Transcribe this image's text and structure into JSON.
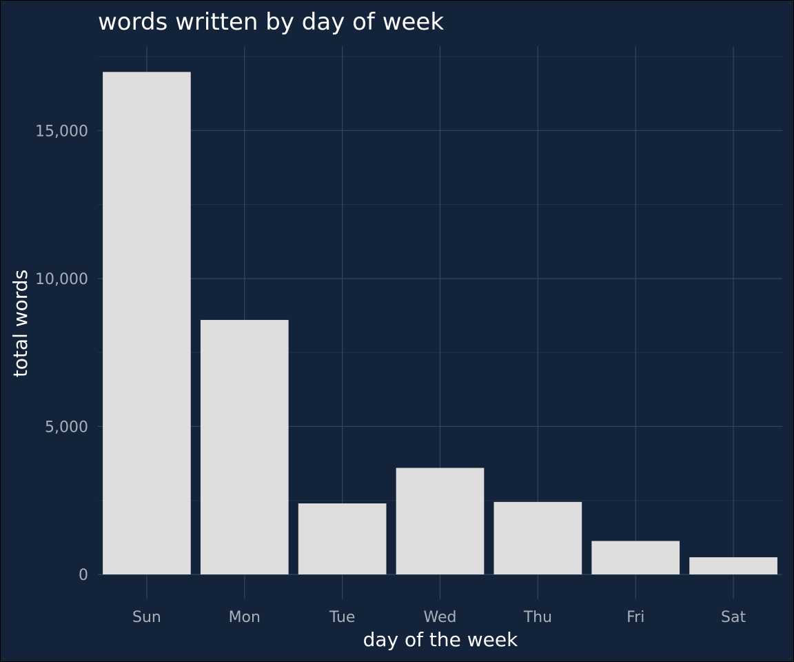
{
  "chart_data": {
    "type": "bar",
    "title": "words written by day of week",
    "xlabel": "day of the week",
    "ylabel": "total words",
    "categories": [
      "Sun",
      "Mon",
      "Tue",
      "Wed",
      "Thu",
      "Fri",
      "Sat"
    ],
    "values": [
      16980,
      8600,
      2400,
      3600,
      2450,
      1130,
      580
    ],
    "ylim": [
      0,
      17850
    ],
    "y_ticks": [
      0,
      5000,
      10000,
      15000
    ],
    "y_tick_labels": [
      "0",
      "5,000",
      "10,000",
      "15,000"
    ],
    "y_minor_ticks": [
      2500,
      7500,
      12500,
      17500
    ],
    "grid": true,
    "legend": "none",
    "colors": {
      "background": "#13233a",
      "bar": "#dedede",
      "text": "#ffffff",
      "tick_text": "#a9b0ba",
      "grid_major": "#34455c",
      "grid_minor": "#22344b"
    }
  }
}
